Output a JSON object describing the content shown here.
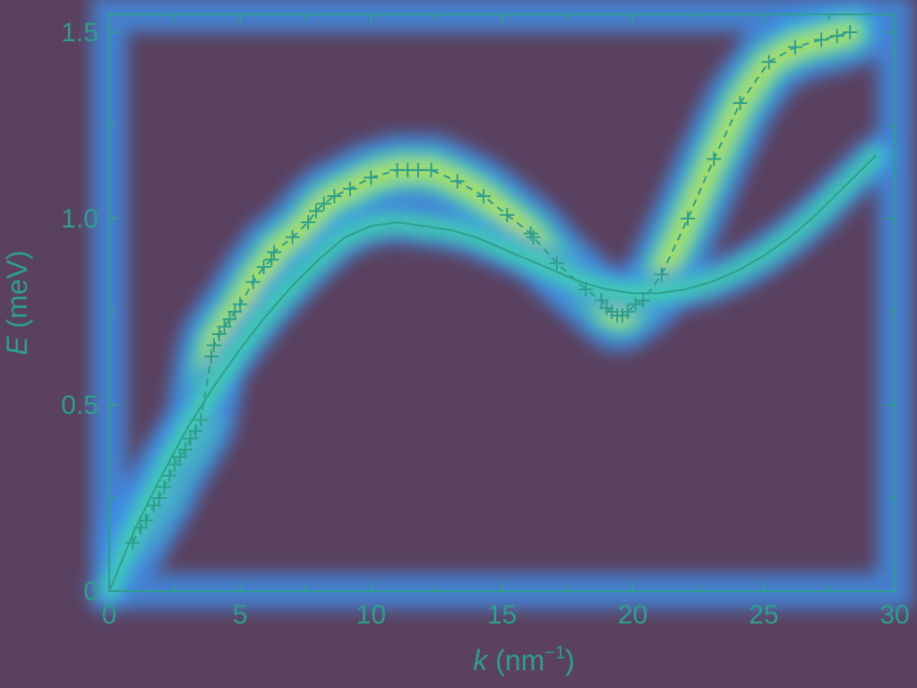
{
  "chart_data": {
    "type": "line",
    "xlabel": {
      "var": "k",
      "unit_pre": " (nm",
      "unit_sup": "−1",
      "unit_post": ")"
    },
    "ylabel": {
      "var": "E",
      "unit": " (meV)"
    },
    "xlim": [
      0,
      30
    ],
    "ylim": [
      0,
      1.55
    ],
    "x_ticks": [
      0,
      5,
      10,
      15,
      20,
      25,
      30
    ],
    "x_tick_labels": [
      "0",
      "5",
      "10",
      "15",
      "20",
      "25",
      "30"
    ],
    "y_ticks": [
      0,
      0.5,
      1.0,
      1.5
    ],
    "y_tick_labels": [
      "0",
      "0.5",
      "1.0",
      "1.5"
    ],
    "grid": false,
    "colors": {
      "background": "#5a4160",
      "line": "#2f9e8e",
      "glow_core": "#d8e83a",
      "glow_mid": "#3ee0a0",
      "glow_outer": "#3f8ee8"
    },
    "series": [
      {
        "style": "markers-dashed",
        "marker": "plus",
        "x": [
          0.9,
          1.2,
          1.4,
          1.7,
          1.9,
          2.1,
          2.3,
          2.5,
          2.7,
          2.9,
          3.1,
          3.3,
          3.5,
          3.9,
          4.0,
          4.2,
          4.4,
          4.6,
          4.8,
          5.0,
          5.5,
          5.9,
          6.2,
          6.3,
          7.0,
          7.6,
          7.9,
          8.2,
          8.6,
          9.2,
          10.0,
          11.0,
          11.4,
          11.8,
          12.3,
          13.3,
          14.3,
          15.2,
          16.1,
          16.2,
          17.1,
          18.2,
          18.8,
          19.0,
          19.2,
          19.4,
          19.6,
          19.8,
          20.1,
          20.4,
          21.1,
          22.1,
          23.1,
          24.1,
          25.2,
          26.2,
          27.2,
          27.8,
          28.3
        ],
        "y": [
          0.13,
          0.17,
          0.19,
          0.23,
          0.25,
          0.28,
          0.31,
          0.34,
          0.36,
          0.38,
          0.41,
          0.43,
          0.46,
          0.63,
          0.66,
          0.69,
          0.71,
          0.73,
          0.75,
          0.77,
          0.83,
          0.87,
          0.89,
          0.91,
          0.95,
          0.99,
          1.02,
          1.04,
          1.06,
          1.08,
          1.11,
          1.13,
          1.13,
          1.13,
          1.13,
          1.1,
          1.06,
          1.01,
          0.96,
          0.95,
          0.88,
          0.81,
          0.78,
          0.76,
          0.75,
          0.74,
          0.74,
          0.75,
          0.77,
          0.78,
          0.85,
          1.0,
          1.16,
          1.31,
          1.42,
          1.46,
          1.48,
          1.49,
          1.5
        ]
      },
      {
        "style": "solid",
        "x": [
          0,
          1,
          2,
          3,
          4,
          5,
          6,
          7,
          8,
          9,
          10,
          11,
          12,
          13,
          14,
          15,
          16,
          17,
          18,
          19,
          20,
          21,
          22,
          23,
          24,
          25,
          26,
          27,
          28,
          29.3
        ],
        "y": [
          0,
          0.17,
          0.31,
          0.44,
          0.55,
          0.65,
          0.74,
          0.82,
          0.89,
          0.95,
          0.98,
          0.99,
          0.98,
          0.97,
          0.95,
          0.92,
          0.89,
          0.86,
          0.83,
          0.81,
          0.8,
          0.8,
          0.81,
          0.83,
          0.86,
          0.9,
          0.95,
          1.01,
          1.08,
          1.17
        ]
      }
    ]
  }
}
